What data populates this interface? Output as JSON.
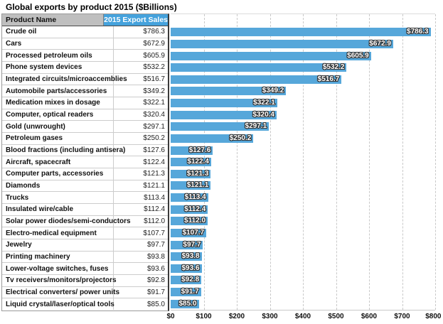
{
  "title": "Global exports by product 2015 ($Billions)",
  "colors": {
    "bar_blue": "#56a7da",
    "header_blue": "#45a2dc",
    "header_gray": "#bfbfbf"
  },
  "table": {
    "columns": {
      "product": "Product Name",
      "sales": "2015 Export Sales"
    },
    "rows": [
      {
        "product": "Crude oil",
        "sales": "$786.3"
      },
      {
        "product": "Cars",
        "sales": "$672.9"
      },
      {
        "product": "Processed petroleum oils",
        "sales": "$605.9"
      },
      {
        "product": "Phone system devices",
        "sales": "$532.2"
      },
      {
        "product": "Integrated circuits/microaccemblies",
        "sales": "$516.7"
      },
      {
        "product": "Automobile parts/accessories",
        "sales": "$349.2"
      },
      {
        "product": "Medication mixes in dosage",
        "sales": "$322.1"
      },
      {
        "product": "Computer, optical readers",
        "sales": "$320.4"
      },
      {
        "product": "Gold (unwrought)",
        "sales": "$297.1"
      },
      {
        "product": "Petroleum gases",
        "sales": "$250.2"
      },
      {
        "product": "Blood fractions (including antisera)",
        "sales": "$127.6"
      },
      {
        "product": "Aircraft, spacecraft",
        "sales": "$122.4"
      },
      {
        "product": "Computer parts, accessories",
        "sales": "$121.3"
      },
      {
        "product": "Diamonds",
        "sales": "$121.1"
      },
      {
        "product": "Trucks",
        "sales": "$113.4"
      },
      {
        "product": "Insulated wire/cable",
        "sales": "$112.4"
      },
      {
        "product": "Solar power diodes/semi-conductors",
        "sales": "$112.0"
      },
      {
        "product": "Electro-medical equipment",
        "sales": "$107.7"
      },
      {
        "product": "Jewelry",
        "sales": "$97.7"
      },
      {
        "product": "Printing machinery",
        "sales": "$93.8"
      },
      {
        "product": "Lower-voltage switches, fuses",
        "sales": "$93.6"
      },
      {
        "product": "Tv receivers/monitors/projectors",
        "sales": "$92.8"
      },
      {
        "product": "Electrical converters/ power units",
        "sales": "$91.7"
      },
      {
        "product": "Liquid crystal/laser/optical tools",
        "sales": "$85.0"
      }
    ]
  },
  "chart_data": {
    "type": "bar",
    "orientation": "horizontal",
    "title": "Global exports by product 2015 ($Billions)",
    "categories": [
      "Crude oil",
      "Cars",
      "Processed petroleum oils",
      "Phone system devices",
      "Integrated circuits/microaccemblies",
      "Automobile parts/accessories",
      "Medication mixes in dosage",
      "Computer, optical readers",
      "Gold (unwrought)",
      "Petroleum gases",
      "Blood fractions (including antisera)",
      "Aircraft, spacecraft",
      "Computer parts, accessories",
      "Diamonds",
      "Trucks",
      "Insulated wire/cable",
      "Solar power diodes/semi-conductors",
      "Electro-medical equipment",
      "Jewelry",
      "Printing machinery",
      "Lower-voltage switches, fuses",
      "Tv receivers/monitors/projectors",
      "Electrical converters/ power units",
      "Liquid crystal/laser/optical tools"
    ],
    "values": [
      786.3,
      672.9,
      605.9,
      532.2,
      516.7,
      349.2,
      322.1,
      320.4,
      297.1,
      250.2,
      127.6,
      122.4,
      121.3,
      121.1,
      113.4,
      112.4,
      112.0,
      107.7,
      97.7,
      93.8,
      93.6,
      92.8,
      91.7,
      85.0
    ],
    "value_labels": [
      "$786.3",
      "$672.9",
      "$605.9",
      "$532.2",
      "$516.7",
      "$349.2",
      "$322.1",
      "$320.4",
      "$297.1",
      "$250.2",
      "$127.6",
      "$122.4",
      "$121.3",
      "$121.1",
      "$113.4",
      "$112.4",
      "$112.0",
      "$107.7",
      "$97.7",
      "$93.8",
      "$93.6",
      "$92.8",
      "$91.7",
      "$85.0"
    ],
    "xlabel": "",
    "ylabel": "",
    "xlim": [
      0,
      800
    ],
    "xticks": [
      0,
      100,
      200,
      300,
      400,
      500,
      600,
      700,
      800
    ],
    "xtick_labels": [
      "$0",
      "$100",
      "$200",
      "$300",
      "$400",
      "$500",
      "$600",
      "$700",
      "$800"
    ],
    "grid": "vertical-dashed",
    "legend": "none",
    "bar_color": "#56a7da"
  }
}
